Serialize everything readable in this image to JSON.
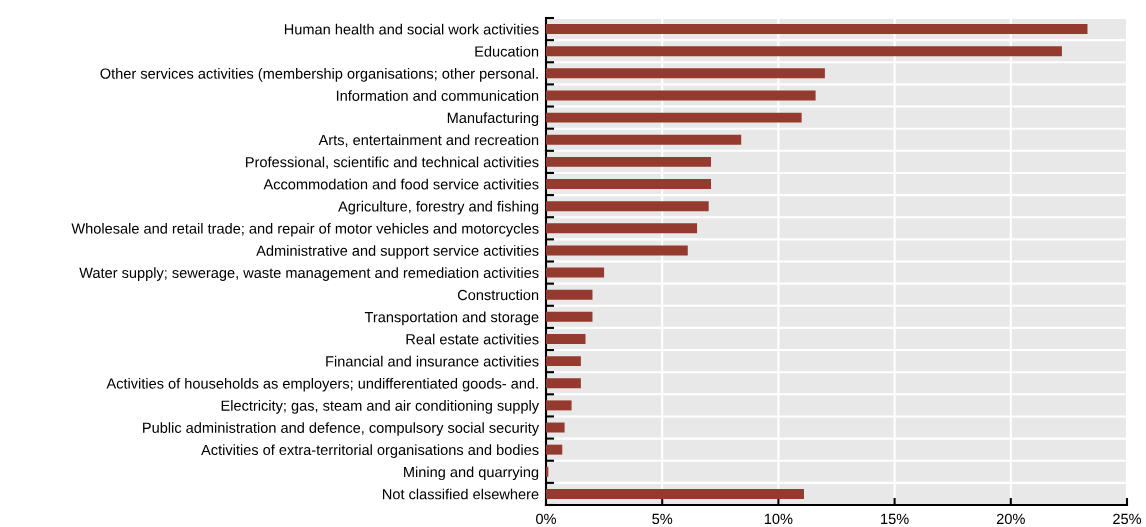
{
  "chart_data": {
    "type": "bar",
    "orientation": "horizontal",
    "color": "#953a2e",
    "grid": true,
    "categories": [
      "Human health and social work activities",
      "Education",
      "Other services activities (membership organisations; other personal.",
      "Information and communication",
      "Manufacturing",
      "Arts, entertainment and recreation",
      "Professional, scientific and technical activities",
      "Accommodation and food service activities",
      "Agriculture, forestry and fishing",
      "Wholesale and retail trade; and repair of motor vehicles and motorcycles",
      "Administrative and support service activities",
      "Water supply; sewerage, waste management and remediation activities",
      "Construction",
      "Transportation and storage",
      "Real estate activities",
      "Financial and insurance activities",
      "Activities of households as employers; undifferentiated goods- and.",
      "Electricity; gas, steam and air conditioning supply",
      "Public administration and defence, compulsory social security",
      "Activities of extra-territorial organisations and bodies",
      "Mining and quarrying",
      "Not classified elsewhere"
    ],
    "values": [
      23.3,
      22.2,
      12.0,
      11.6,
      11.0,
      8.4,
      7.1,
      7.1,
      7.0,
      6.5,
      6.1,
      2.5,
      2.0,
      2.0,
      1.7,
      1.5,
      1.5,
      1.1,
      0.8,
      0.7,
      0.1,
      11.1
    ],
    "xlim": [
      0,
      25
    ],
    "xticks": [
      {
        "value": 0,
        "label": "0%"
      },
      {
        "value": 5,
        "label": "5%"
      },
      {
        "value": 10,
        "label": "10%"
      },
      {
        "value": 15,
        "label": "15%"
      },
      {
        "value": 20,
        "label": "20%"
      },
      {
        "value": 25,
        "label": "25%"
      }
    ]
  }
}
